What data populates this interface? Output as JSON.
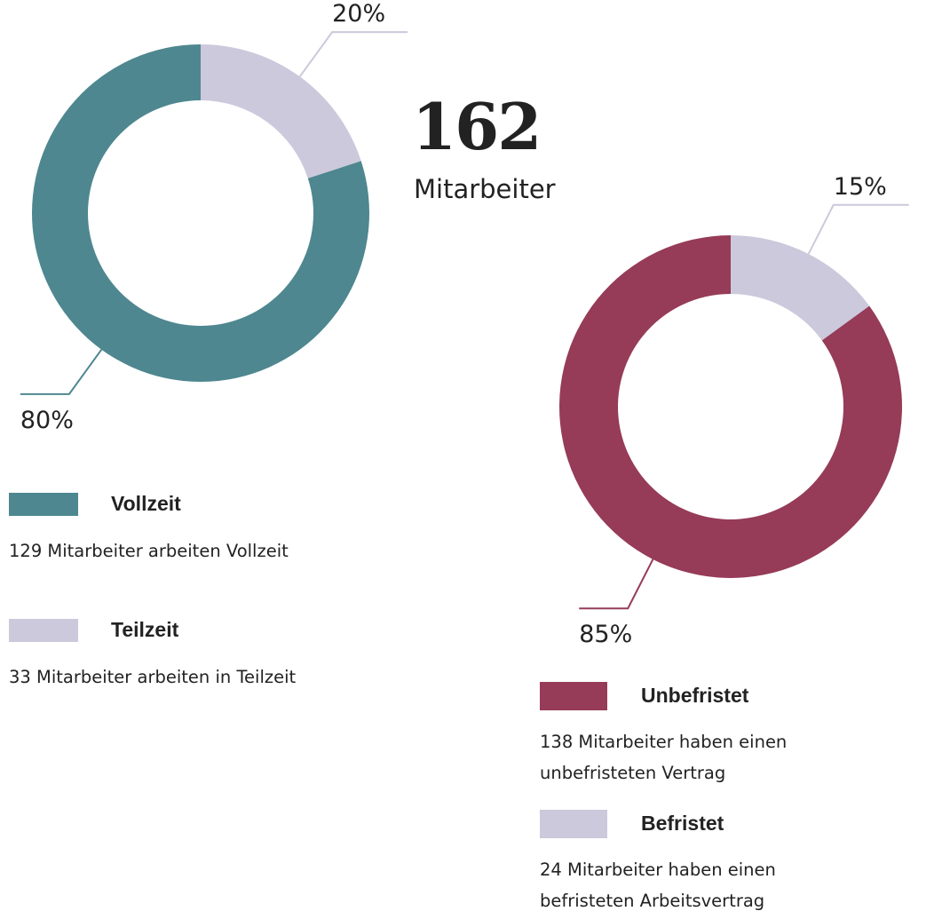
{
  "headline": {
    "number": 162,
    "label": "Mitarbeiter"
  },
  "chart_data": [
    {
      "type": "pie",
      "categories": [
        "Vollzeit",
        "Teilzeit"
      ],
      "values": [
        80,
        20
      ],
      "value_labels": [
        "80%",
        "20%"
      ],
      "colors": [
        "#4e8790",
        "#cbc9db"
      ],
      "descriptions": [
        [
          "129 Mitarbeiter arbeiten Vollzeit"
        ],
        [
          "33 Mitarbeiter arbeiten in Teilzeit"
        ]
      ]
    },
    {
      "type": "pie",
      "categories": [
        "Unbefristet",
        "Befristet"
      ],
      "values": [
        85,
        15
      ],
      "value_labels": [
        "85%",
        "15%"
      ],
      "colors": [
        "#963b58",
        "#cbc9db"
      ],
      "descriptions": [
        [
          "138 Mitarbeiter haben einen",
          "unbefristeten Vertrag"
        ],
        [
          "24 Mitarbeiter haben einen",
          "befristeten Arbeitsvertrag"
        ]
      ]
    }
  ]
}
